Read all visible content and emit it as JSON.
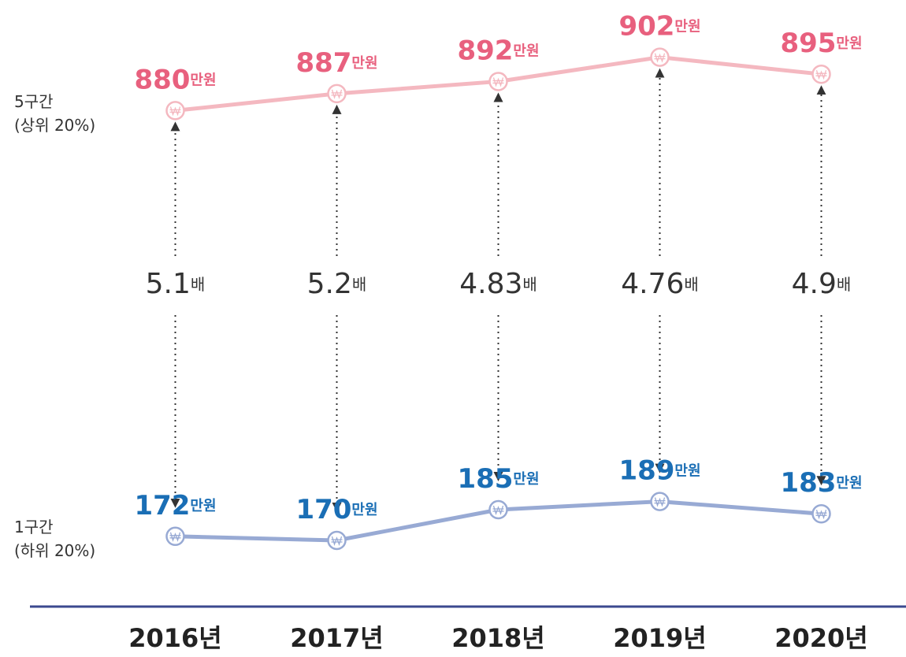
{
  "chart_data": {
    "type": "line",
    "categories": [
      "2016년",
      "2017년",
      "2018년",
      "2019년",
      "2020년"
    ],
    "series": [
      {
        "name": "5구간 (상위 20%)",
        "color": "#f4b8c0",
        "label_color": "#e8607e",
        "values": [
          880,
          887,
          892,
          902,
          895
        ],
        "value_labels": [
          "880만원",
          "887만원",
          "892만원",
          "902만원",
          "895만원"
        ],
        "ylim": [
          860,
          910
        ]
      },
      {
        "name": "1구간 (하위 20%)",
        "color": "#98aad4",
        "label_color": "#1a6eb5",
        "values": [
          172,
          170,
          185,
          189,
          183
        ],
        "value_labels": [
          "172만원",
          "170만원",
          "185만원",
          "189만원",
          "183만원"
        ],
        "ylim": [
          160,
          200
        ]
      }
    ],
    "ratios": {
      "values": [
        5.1,
        5.2,
        4.83,
        4.76,
        4.9
      ],
      "value_labels": [
        "5.1배",
        "5.2배",
        "4.83배",
        "4.76배",
        "4.9배"
      ]
    }
  }
}
